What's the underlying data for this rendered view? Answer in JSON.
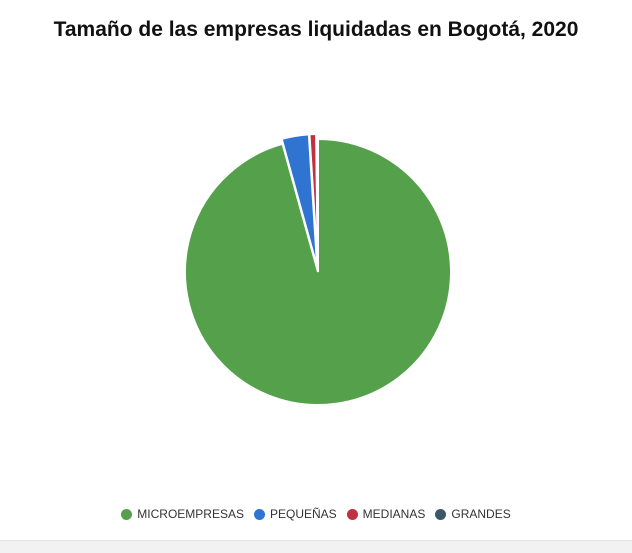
{
  "chart_data": {
    "type": "pie",
    "title": "Tamaño de las empresas liquidadas en Bogotá, 2020",
    "series": [
      {
        "name": "MICROEMPRESAS",
        "value": 95.7,
        "color": "#55a04b"
      },
      {
        "name": "PEQUEÑAS",
        "value": 3.3,
        "color": "#2f74d0"
      },
      {
        "name": "MEDIANAS",
        "value": 0.8,
        "color": "#c0313f"
      },
      {
        "name": "GRANDES",
        "value": 0.2,
        "color": "#3c5868"
      }
    ],
    "legend_position": "bottom",
    "exploded_slices": [
      "PEQUEÑAS",
      "MEDIANAS",
      "GRANDES"
    ]
  }
}
